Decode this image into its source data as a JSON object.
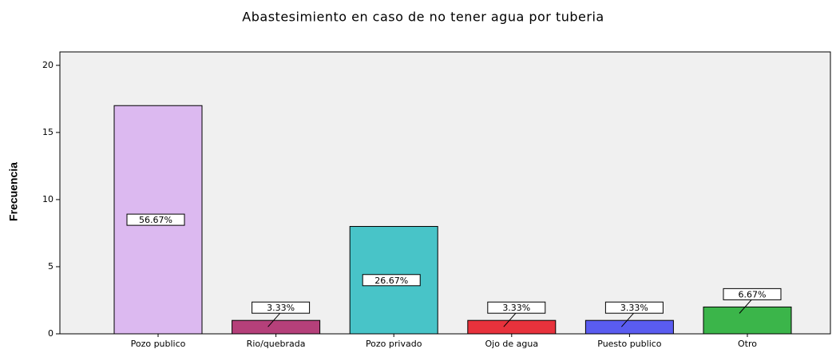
{
  "chart_data": {
    "type": "bar",
    "title": "Abastesimiento en caso de no tener agua por tuberia",
    "ylabel": "Frecuencia",
    "categories": [
      "Pozo publico",
      "Rio/quebrada",
      "Pozo privado",
      "Ojo de agua",
      "Puesto publico",
      "Otro"
    ],
    "values": [
      17,
      1,
      8,
      1,
      1,
      2
    ],
    "data_labels": [
      "56.67%",
      "3.33%",
      "26.67%",
      "3.33%",
      "3.33%",
      "6.67%"
    ],
    "colors": [
      "#dcb9f0",
      "#b5407a",
      "#48c4c8",
      "#e8323c",
      "#5a5cf0",
      "#3bb54a"
    ],
    "ylim": [
      0,
      21
    ],
    "yticks": [
      0,
      5,
      10,
      15,
      20
    ]
  }
}
